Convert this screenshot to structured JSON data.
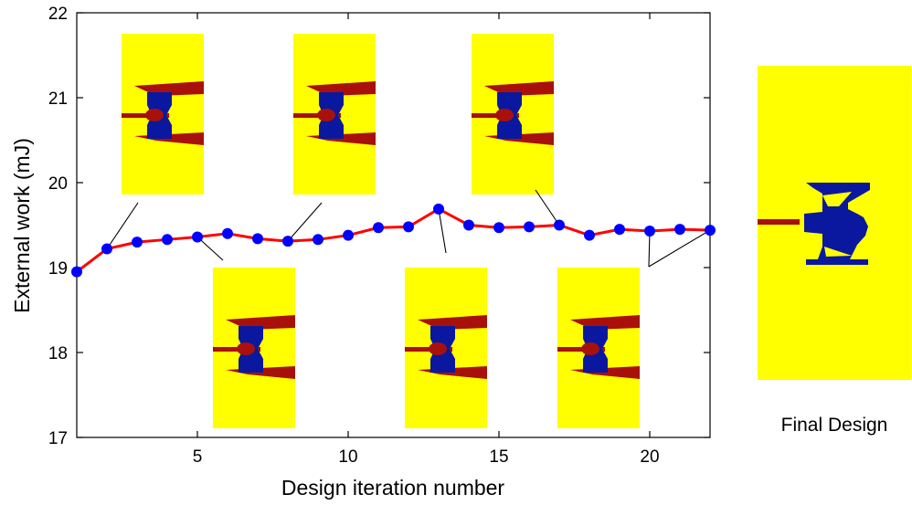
{
  "chart_data": {
    "type": "line",
    "xlabel": "Design iteration number",
    "ylabel": "External work (mJ)",
    "xlim": [
      1,
      22
    ],
    "ylim": [
      17,
      22
    ],
    "xticks": [
      5,
      10,
      15,
      20
    ],
    "yticks": [
      17,
      18,
      19,
      20,
      21,
      22
    ],
    "grid": false,
    "series": [
      {
        "x": [
          1,
          2,
          3,
          4,
          5,
          6,
          7,
          8,
          9,
          10,
          11,
          12,
          13,
          14,
          15,
          16,
          17,
          18,
          19,
          20,
          21,
          22
        ],
        "values": [
          18.95,
          19.22,
          19.3,
          19.33,
          19.36,
          19.4,
          19.34,
          19.31,
          19.33,
          19.38,
          19.47,
          19.48,
          19.69,
          19.5,
          19.47,
          19.48,
          19.5,
          19.38,
          19.45,
          19.43,
          19.45,
          19.44
        ],
        "line_color": "#ff0000",
        "marker_color": "#0000ff"
      }
    ],
    "inset_iterations": [
      2,
      5,
      8,
      13,
      17,
      20
    ],
    "final_design_label": "Final Design",
    "colors": {
      "background": "#ffff00",
      "material": "#0a18a0",
      "load": "#a8100c"
    }
  }
}
